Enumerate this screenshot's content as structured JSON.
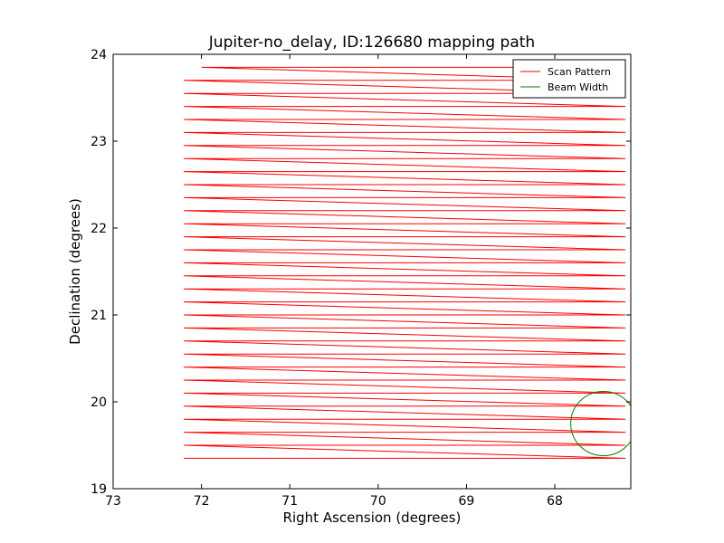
{
  "chart_data": {
    "type": "line",
    "title": "Jupiter-no_delay, ID:126680 mapping path",
    "xlabel": "Right Ascension (degrees)",
    "ylabel": "Declination (degrees)",
    "xlim": [
      73.0,
      67.14
    ],
    "ylim": [
      19.0,
      24.0
    ],
    "x_inverted": true,
    "xticks": [
      73,
      72,
      71,
      70,
      69,
      68
    ],
    "yticks": [
      19,
      20,
      21,
      22,
      23,
      24
    ],
    "grid": false,
    "legend": {
      "position": "top-right",
      "entries": [
        "Scan Pattern",
        "Beam Width"
      ]
    },
    "series": [
      {
        "name": "Scan Pattern",
        "color": "#ff0000",
        "points": [
          [
            72.2,
            19.35
          ],
          [
            67.2,
            19.35
          ],
          [
            72.2,
            19.5
          ],
          [
            67.2,
            19.5
          ],
          [
            72.2,
            19.65
          ],
          [
            67.2,
            19.65
          ],
          [
            72.2,
            19.8
          ],
          [
            67.2,
            19.8
          ],
          [
            72.2,
            19.95
          ],
          [
            67.2,
            19.95
          ],
          [
            72.2,
            20.1
          ],
          [
            67.2,
            20.1
          ],
          [
            72.2,
            20.25
          ],
          [
            67.2,
            20.25
          ],
          [
            72.2,
            20.4
          ],
          [
            67.2,
            20.4
          ],
          [
            72.2,
            20.55
          ],
          [
            67.2,
            20.55
          ],
          [
            72.2,
            20.7
          ],
          [
            67.2,
            20.7
          ],
          [
            72.2,
            20.85
          ],
          [
            67.2,
            20.85
          ],
          [
            72.2,
            21.0
          ],
          [
            67.2,
            21.0
          ],
          [
            72.2,
            21.15
          ],
          [
            67.2,
            21.15
          ],
          [
            72.2,
            21.3
          ],
          [
            67.2,
            21.3
          ],
          [
            72.2,
            21.45
          ],
          [
            67.2,
            21.45
          ],
          [
            72.2,
            21.6
          ],
          [
            67.2,
            21.6
          ],
          [
            72.2,
            21.75
          ],
          [
            67.2,
            21.75
          ],
          [
            72.2,
            21.9
          ],
          [
            67.2,
            21.9
          ],
          [
            72.2,
            22.05
          ],
          [
            67.2,
            22.05
          ],
          [
            72.2,
            22.2
          ],
          [
            67.2,
            22.2
          ],
          [
            72.2,
            22.35
          ],
          [
            67.2,
            22.35
          ],
          [
            72.2,
            22.5
          ],
          [
            67.2,
            22.5
          ],
          [
            72.2,
            22.65
          ],
          [
            67.2,
            22.65
          ],
          [
            72.2,
            22.8
          ],
          [
            67.2,
            22.8
          ],
          [
            72.2,
            22.95
          ],
          [
            67.2,
            22.95
          ],
          [
            72.2,
            23.1
          ],
          [
            67.2,
            23.1
          ],
          [
            72.2,
            23.25
          ],
          [
            67.2,
            23.25
          ],
          [
            72.2,
            23.4
          ],
          [
            67.2,
            23.4
          ],
          [
            72.2,
            23.55
          ],
          [
            67.2,
            23.55
          ],
          [
            72.2,
            23.7
          ],
          [
            67.2,
            23.7
          ],
          [
            72.0,
            23.85
          ],
          [
            67.2,
            23.85
          ]
        ]
      },
      {
        "name": "Beam Width",
        "color": "#008000",
        "circle": {
          "center": [
            67.45,
            19.75
          ],
          "radius": 0.37
        }
      }
    ]
  }
}
